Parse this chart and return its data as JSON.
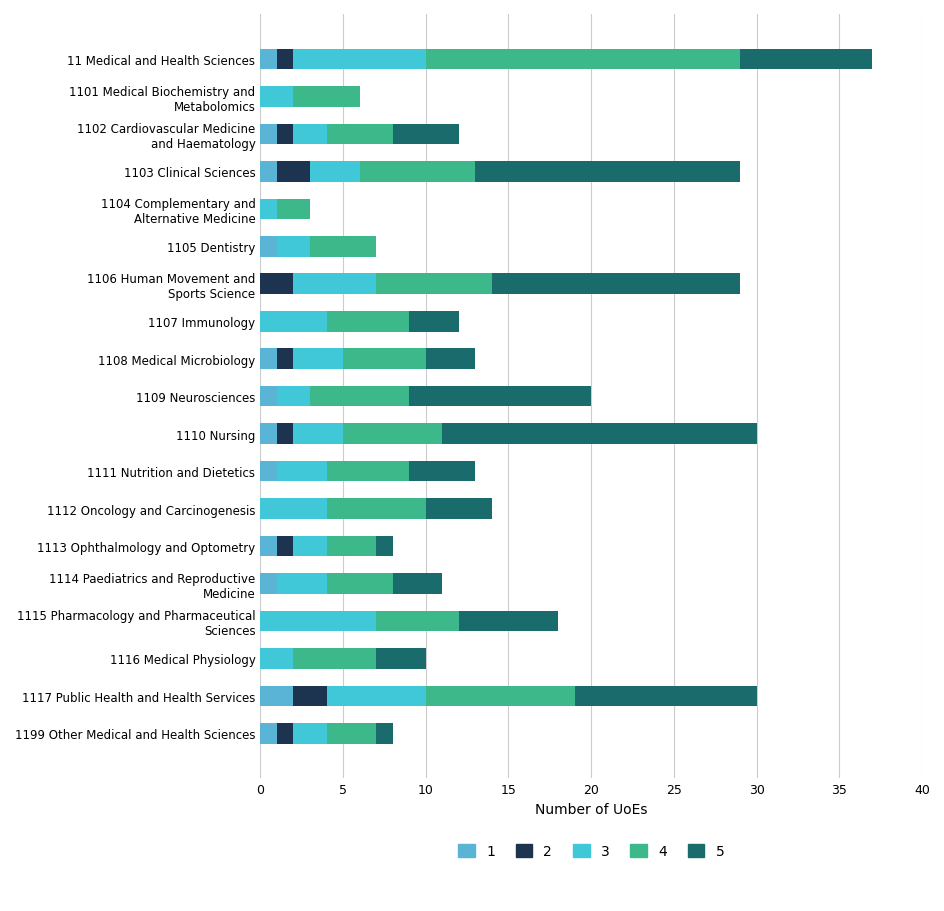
{
  "categories": [
    "11 Medical and Health Sciences",
    "1101 Medical Biochemistry and\nMetabolomics",
    "1102 Cardiovascular Medicine\nand Haematology",
    "1103 Clinical Sciences",
    "1104 Complementary and\nAlternative Medicine",
    "1105 Dentistry",
    "1106 Human Movement and\nSports Science",
    "1107 Immunology",
    "1108 Medical Microbiology",
    "1109 Neurosciences",
    "1110 Nursing",
    "1111 Nutrition and Dietetics",
    "1112 Oncology and Carcinogenesis",
    "1113 Ophthalmology and Optometry",
    "1114 Paediatrics and Reproductive\nMedicine",
    "1115 Pharmacology and Pharmaceutical\nSciences",
    "1116 Medical Physiology",
    "1117 Public Health and Health Services",
    "1199 Other Medical and Health Sciences"
  ],
  "rating1": [
    1,
    0,
    1,
    1,
    0,
    1,
    0,
    0,
    1,
    1,
    1,
    1,
    0,
    1,
    1,
    0,
    0,
    2,
    1
  ],
  "rating2": [
    1,
    0,
    1,
    2,
    0,
    0,
    2,
    0,
    1,
    0,
    1,
    0,
    0,
    1,
    0,
    0,
    0,
    2,
    1
  ],
  "rating3": [
    8,
    2,
    2,
    3,
    1,
    2,
    5,
    4,
    3,
    2,
    3,
    3,
    4,
    2,
    3,
    7,
    2,
    6,
    2
  ],
  "rating4": [
    19,
    4,
    4,
    7,
    2,
    4,
    7,
    5,
    5,
    6,
    6,
    5,
    6,
    3,
    4,
    5,
    5,
    9,
    3
  ],
  "rating5": [
    8,
    0,
    4,
    16,
    0,
    0,
    15,
    3,
    3,
    11,
    19,
    4,
    4,
    1,
    3,
    6,
    3,
    11,
    1
  ],
  "colors": {
    "1": "#5ab4d6",
    "2": "#1d3451",
    "3": "#40c8d8",
    "4": "#3db88a",
    "5": "#1a6b6b"
  },
  "xlabel": "Number of UoEs",
  "xlim": [
    0,
    40
  ],
  "xticks": [
    0,
    5,
    10,
    15,
    20,
    25,
    30,
    35,
    40
  ],
  "grid_color": "#cccccc",
  "bar_height": 0.55
}
